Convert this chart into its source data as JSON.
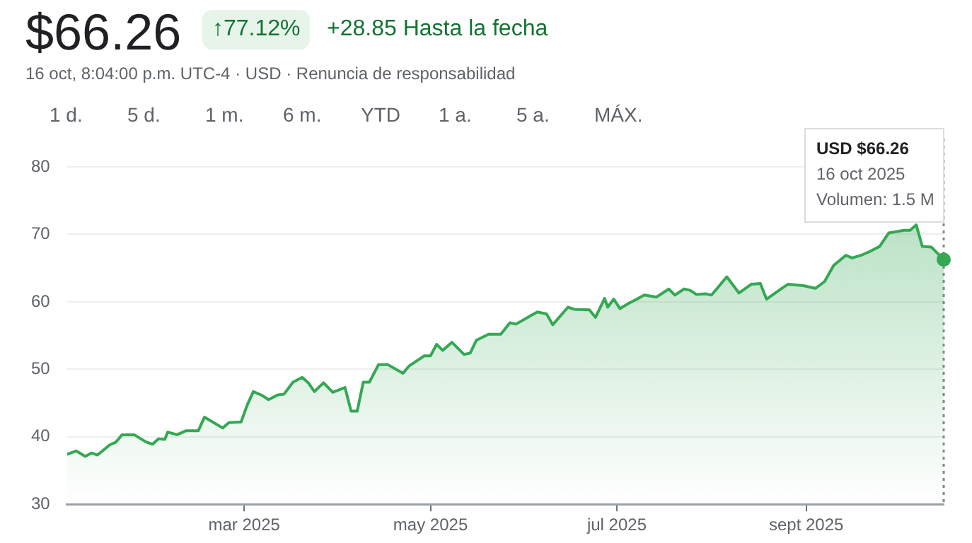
{
  "chart_data": {
    "type": "area",
    "title": "$66.26",
    "subtitle": "16 oct, 8:04:00 p.m. UTC-4 · USD · Renuncia de responsabilidad",
    "annotations": [
      "↑77.12%",
      "+28.85 Hasta la fecha",
      "1 d.",
      "5 d.",
      "1 m.",
      "6 m.",
      "YTD",
      "1 a.",
      "5 a.",
      "MÁX.",
      "USD $66.26\n16 oct 2025\nVolumen: 1.5 M"
    ],
    "x": [
      "2025-01-02",
      "2025-01-05",
      "2025-01-08",
      "2025-01-10",
      "2025-01-12",
      "2025-01-16",
      "2025-01-18",
      "2025-01-20",
      "2025-01-24",
      "2025-01-28",
      "2025-01-30",
      "2025-02-01",
      "2025-02-03",
      "2025-02-04",
      "2025-02-07",
      "2025-02-10",
      "2025-02-14",
      "2025-02-16",
      "2025-02-22",
      "2025-02-24",
      "2025-02-28",
      "2025-03-02",
      "2025-03-04",
      "2025-03-07",
      "2025-03-09",
      "2025-03-12",
      "2025-03-14",
      "2025-03-17",
      "2025-03-20",
      "2025-03-22",
      "2025-03-24",
      "2025-03-27",
      "2025-03-30",
      "2025-04-03",
      "2025-04-05",
      "2025-04-07",
      "2025-04-09",
      "2025-04-11",
      "2025-04-14",
      "2025-04-17",
      "2025-04-22",
      "2025-04-24",
      "2025-04-29",
      "2025-05-01",
      "2025-05-03",
      "2025-05-05",
      "2025-05-08",
      "2025-05-12",
      "2025-05-14",
      "2025-05-16",
      "2025-05-20",
      "2025-05-24",
      "2025-05-27",
      "2025-05-29",
      "2025-06-03",
      "2025-06-05",
      "2025-06-08",
      "2025-06-10",
      "2025-06-15",
      "2025-06-17",
      "2025-06-22",
      "2025-06-24",
      "2025-06-27",
      "2025-06-28",
      "2025-06-30",
      "2025-07-02",
      "2025-07-05",
      "2025-07-08",
      "2025-07-10",
      "2025-07-14",
      "2025-07-18",
      "2025-07-20",
      "2025-07-23",
      "2025-07-25",
      "2025-07-27",
      "2025-07-30",
      "2025-08-01",
      "2025-08-06",
      "2025-08-10",
      "2025-08-14",
      "2025-08-17",
      "2025-08-19",
      "2025-08-24",
      "2025-08-26",
      "2025-08-31",
      "2025-09-04",
      "2025-09-07",
      "2025-09-10",
      "2025-09-14",
      "2025-09-16",
      "2025-09-19",
      "2025-09-22",
      "2025-09-25",
      "2025-09-28",
      "2025-10-03",
      "2025-10-05",
      "2025-10-07",
      "2025-10-09",
      "2025-10-12",
      "2025-10-16"
    ],
    "series": [
      {
        "color": "#34a853",
        "values": [
          37.4,
          37.9,
          37.1,
          37.6,
          37.3,
          38.8,
          39.2,
          40.3,
          40.3,
          39.2,
          38.9,
          39.7,
          39.6,
          40.7,
          40.3,
          40.9,
          40.9,
          42.9,
          41.3,
          42.1,
          42.2,
          44.7,
          46.7,
          46.1,
          45.5,
          46.2,
          46.3,
          48.1,
          48.8,
          48.0,
          46.7,
          48.0,
          46.6,
          47.3,
          43.8,
          43.8,
          48.1,
          48.1,
          50.7,
          50.7,
          49.4,
          50.5,
          52.0,
          52.0,
          53.7,
          52.8,
          54.0,
          52.2,
          52.4,
          54.3,
          55.2,
          55.2,
          56.9,
          56.7,
          58.0,
          58.5,
          58.2,
          56.6,
          59.2,
          58.9,
          58.8,
          57.7,
          60.5,
          59.2,
          60.4,
          59.0,
          59.8,
          60.5,
          61.0,
          60.7,
          61.9,
          61.0,
          61.9,
          61.7,
          61.1,
          61.2,
          61.0,
          63.7,
          61.3,
          62.6,
          62.7,
          60.4,
          62.0,
          62.6,
          62.4,
          62.0,
          63.0,
          65.4,
          66.9,
          66.5,
          66.9,
          67.5,
          68.2,
          70.2,
          70.6,
          70.6,
          71.4,
          68.2,
          68.1,
          66.26
        ]
      }
    ],
    "xlim": [
      "2025-01-02",
      "2025-10-16"
    ],
    "xticks": [
      {
        "value": "2025-03-01",
        "label": "mar 2025"
      },
      {
        "value": "2025-05-01",
        "label": "may 2025"
      },
      {
        "value": "2025-07-01",
        "label": "jul 2025"
      },
      {
        "value": "2025-09-01",
        "label": "sept 2025"
      }
    ],
    "ylim": [
      30,
      80
    ],
    "yticks": [
      30,
      40,
      50,
      60,
      70,
      80
    ],
    "ref_lines": [
      {
        "axis": "x",
        "value": "2025-10-16",
        "color": "#80868b",
        "line_style": "dotted"
      }
    ],
    "grid": "y",
    "legend": false,
    "marker": "none",
    "line_style": "solid"
  }
}
